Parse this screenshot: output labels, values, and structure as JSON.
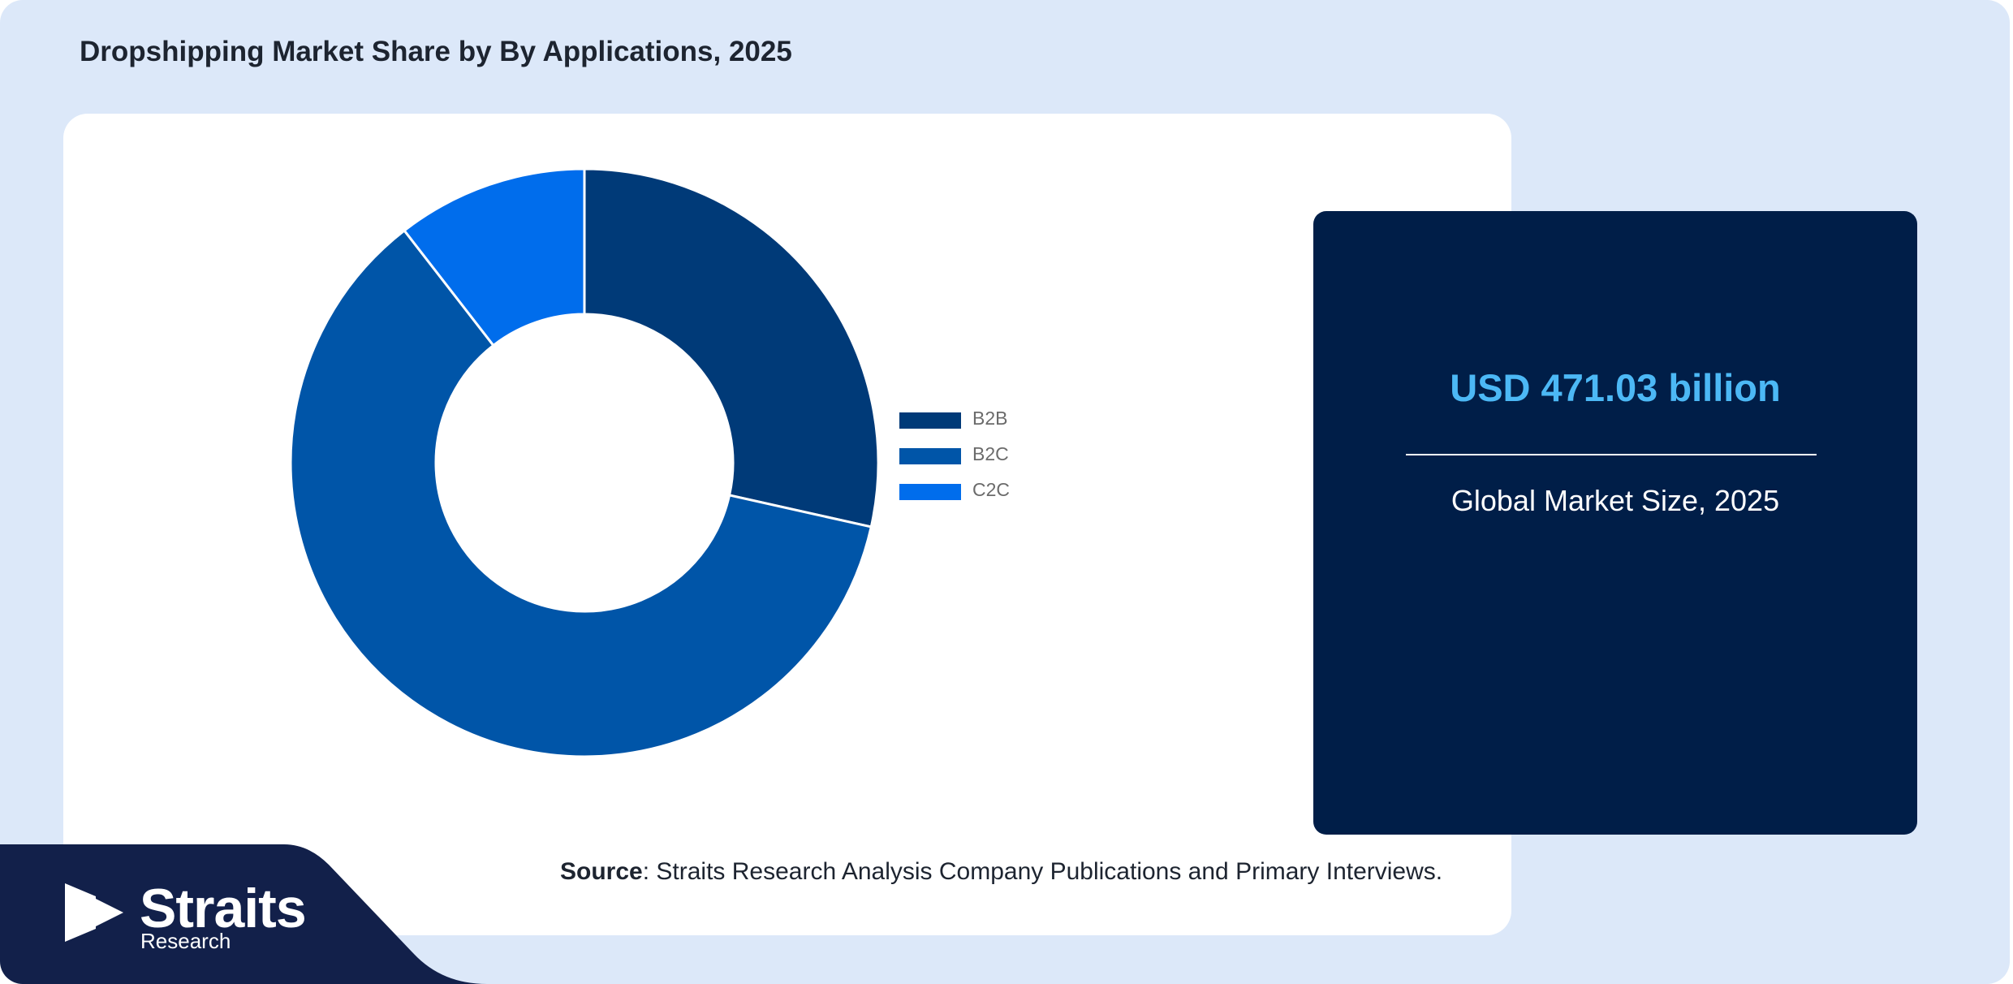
{
  "title": "Dropshipping Market Share by By Applications, 2025",
  "colors": {
    "background": "#dce8f9",
    "panel": "#ffffff",
    "stat_card": "#001e48",
    "stat_value": "#4cb8f5",
    "logo_band": "#12204a"
  },
  "chart_data": {
    "type": "pie",
    "donut": true,
    "categories": [
      "B2B",
      "B2C",
      "C2C"
    ],
    "values": [
      28.5,
      61.0,
      10.5
    ],
    "colors": [
      "#003a78",
      "#0055a8",
      "#006dec"
    ],
    "legend": "right"
  },
  "stat": {
    "value": "USD 471.03 billion",
    "label": "Global Market Size, 2025"
  },
  "source": {
    "label": "Source",
    "text": ": Straits Research Analysis Company Publications and Primary Interviews."
  },
  "logo": {
    "name": "Straits",
    "sub": "Research",
    "icon": "straits-arrow-icon"
  }
}
